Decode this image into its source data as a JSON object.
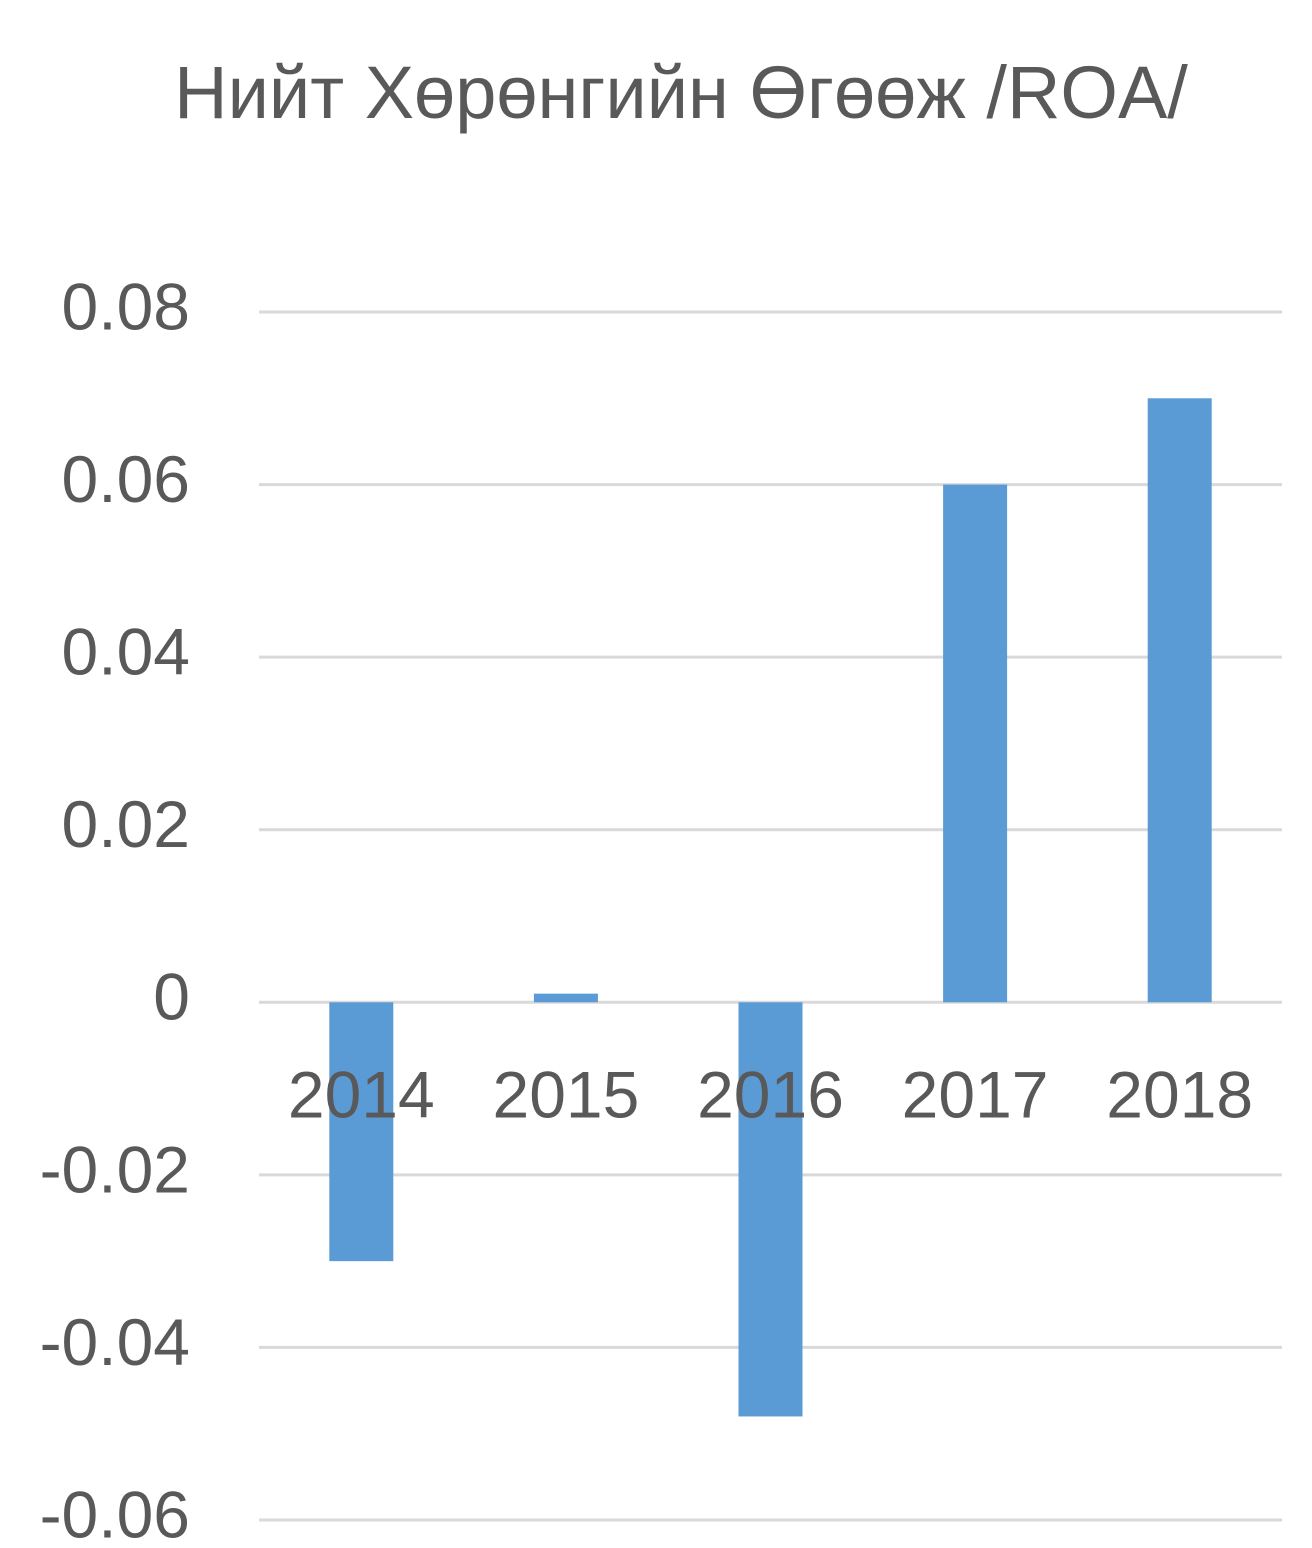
{
  "chart_data": {
    "type": "bar",
    "title": "Нийт Хөрөнгийн Өгөөж /ROA/",
    "categories": [
      "2014",
      "2015",
      "2016",
      "2017",
      "2018"
    ],
    "values": [
      -0.03,
      0.001,
      -0.048,
      0.06,
      0.07
    ],
    "color": "#5b9bd5",
    "ylim": [
      -0.06,
      0.08
    ],
    "yticks": [
      -0.06,
      -0.04,
      -0.02,
      0,
      0.02,
      0.04,
      0.06,
      0.08
    ],
    "grid": true
  }
}
